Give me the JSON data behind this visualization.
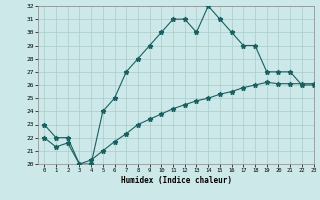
{
  "title": "",
  "xlabel": "Humidex (Indice chaleur)",
  "bg_color": "#cce8e8",
  "line_color": "#1a6060",
  "grid_color": "#aacccc",
  "x_values": [
    0,
    1,
    2,
    3,
    4,
    5,
    6,
    7,
    8,
    9,
    10,
    11,
    12,
    13,
    14,
    15,
    16,
    17,
    18,
    19,
    20,
    21,
    22,
    23
  ],
  "upper_line": [
    23,
    22,
    22,
    20,
    20,
    24,
    25,
    27,
    28,
    29,
    30,
    31,
    31,
    30,
    32,
    31,
    30,
    29,
    29,
    27,
    27,
    27,
    26,
    26
  ],
  "lower_line": [
    22.0,
    21.3,
    21.6,
    20.0,
    20.3,
    21.0,
    21.7,
    22.3,
    23.0,
    23.4,
    23.8,
    24.2,
    24.5,
    24.8,
    25.0,
    25.3,
    25.5,
    25.8,
    26.0,
    26.2,
    26.1,
    26.1,
    26.1,
    26.1
  ],
  "ylim": [
    20,
    32
  ],
  "xlim": [
    -0.5,
    23
  ],
  "yticks": [
    20,
    21,
    22,
    23,
    24,
    25,
    26,
    27,
    28,
    29,
    30,
    31,
    32
  ],
  "xticks": [
    0,
    1,
    2,
    3,
    4,
    5,
    6,
    7,
    8,
    9,
    10,
    11,
    12,
    13,
    14,
    15,
    16,
    17,
    18,
    19,
    20,
    21,
    22,
    23
  ],
  "marker": "*",
  "linewidth": 0.8,
  "markersize": 3.5
}
